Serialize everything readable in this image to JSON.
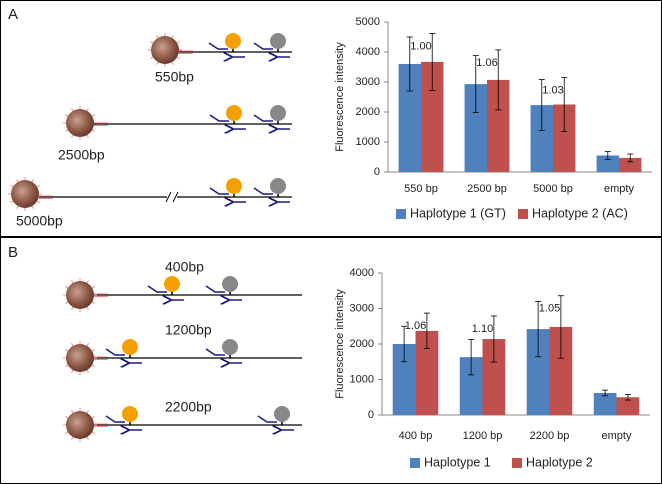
{
  "panels": [
    {
      "label": "A",
      "diagram_labels": [
        "550bp",
        "2500bp",
        "5000bp"
      ]
    },
    {
      "label": "B",
      "diagram_labels": [
        "400bp",
        "1200bp",
        "2200bp"
      ]
    }
  ],
  "chart_data": [
    {
      "type": "bar",
      "y_label": "Fluorescence intensity",
      "categories": [
        "550 bp",
        "2500 bp",
        "5000 bp",
        "empty"
      ],
      "series": [
        {
          "name": "Haplotype 1 (GT)",
          "color": "#4f81bd",
          "values": [
            3600,
            2930,
            2230,
            550
          ],
          "errors": [
            900,
            950,
            850,
            130
          ]
        },
        {
          "name": "Haplotype 2 (AC)",
          "color": "#c0504d",
          "values": [
            3670,
            3070,
            2250,
            470
          ],
          "errors": [
            950,
            1000,
            900,
            130
          ]
        }
      ],
      "annotations": [
        "1.00",
        "1.06",
        "1.03"
      ],
      "ylim": [
        0,
        5000
      ],
      "yticks": [
        0,
        1000,
        2000,
        3000,
        4000,
        5000
      ]
    },
    {
      "type": "bar",
      "y_label": "Fluorescence intensity",
      "categories": [
        "400 bp",
        "1200 bp",
        "2200 bp",
        "empty"
      ],
      "series": [
        {
          "name": "Haplotype 1",
          "color": "#4f81bd",
          "values": [
            2000,
            1630,
            2420,
            620
          ],
          "errors": [
            500,
            500,
            780,
            80
          ]
        },
        {
          "name": "Haplotype 2",
          "color": "#c0504d",
          "values": [
            2370,
            2140,
            2480,
            500
          ],
          "errors": [
            500,
            650,
            880,
            80
          ]
        }
      ],
      "annotations": [
        "1.06",
        "1.10",
        "1.05"
      ],
      "ylim": [
        0,
        4000
      ],
      "yticks": [
        0,
        1000,
        2000,
        3000,
        4000
      ]
    }
  ]
}
